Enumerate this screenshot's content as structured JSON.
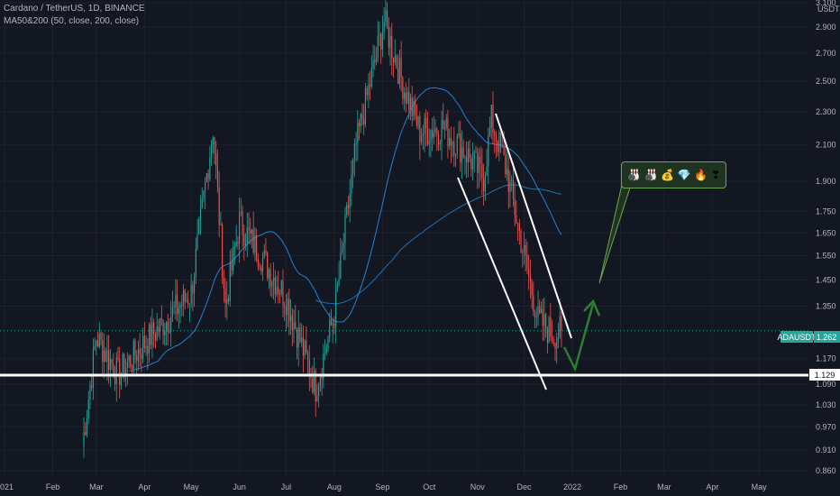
{
  "header": {
    "title": "Cardano / TetherUS, 1D, BINANCE",
    "indicator": "MA50&200 (50, close, 200, close)"
  },
  "emojis": [
    "🎳",
    "🎳",
    "💰",
    "💎",
    "🔥",
    "❣"
  ],
  "colors": {
    "background": "#131722",
    "up": "#26a69a",
    "down": "#ef5350",
    "ma50": "#2196f3",
    "ma200": "#2196f3",
    "support": "#ffffff",
    "arrow": "#2e7d32",
    "price_tag": "#26a69a"
  },
  "chart_data": {
    "type": "candlestick",
    "symbol": "ADAUSDT",
    "exchange": "BINANCE",
    "interval": "1D",
    "currency": "USDT",
    "y_scale": "log",
    "ylim": [
      0.835,
      3.16
    ],
    "y_ticks": [
      "3.100",
      "2.900",
      "2.700",
      "2.500",
      "2.300",
      "2.100",
      "1.900",
      "1.750",
      "1.650",
      "1.550",
      "1.450",
      "1.350",
      "1.170",
      "1.090",
      "1.030",
      "0.970",
      "0.910",
      "0.860"
    ],
    "x_ticks": [
      "2021",
      "Feb",
      "Mar",
      "Apr",
      "May",
      "Jun",
      "Jul",
      "Aug",
      "Sep",
      "Oct",
      "Nov",
      "Dec",
      "2022",
      "Feb",
      "Mar",
      "Apr",
      "May"
    ],
    "last_price": {
      "label": "ADAUSDT",
      "value": "1.262"
    },
    "support_level": {
      "value": "1.129"
    },
    "key_closes": [
      {
        "date": "2021-02-20",
        "close": 0.92
      },
      {
        "date": "2021-03-01",
        "close": 1.24
      },
      {
        "date": "2021-03-15",
        "close": 1.12
      },
      {
        "date": "2021-04-01",
        "close": 1.22
      },
      {
        "date": "2021-04-15",
        "close": 1.3
      },
      {
        "date": "2021-05-01",
        "close": 1.4
      },
      {
        "date": "2021-05-15",
        "close": 2.2
      },
      {
        "date": "2021-05-23",
        "close": 1.35
      },
      {
        "date": "2021-06-01",
        "close": 1.7
      },
      {
        "date": "2021-06-15",
        "close": 1.55
      },
      {
        "date": "2021-07-01",
        "close": 1.38
      },
      {
        "date": "2021-07-20",
        "close": 1.08
      },
      {
        "date": "2021-08-01",
        "close": 1.32
      },
      {
        "date": "2021-08-15",
        "close": 2.1
      },
      {
        "date": "2021-09-02",
        "close": 2.95
      },
      {
        "date": "2021-09-15",
        "close": 2.45
      },
      {
        "date": "2021-09-25",
        "close": 2.18
      },
      {
        "date": "2021-10-10",
        "close": 2.2
      },
      {
        "date": "2021-10-25",
        "close": 2.05
      },
      {
        "date": "2021-11-05",
        "close": 1.92
      },
      {
        "date": "2021-11-10",
        "close": 2.25
      },
      {
        "date": "2021-11-20",
        "close": 1.95
      },
      {
        "date": "2021-12-01",
        "close": 1.55
      },
      {
        "date": "2021-12-10",
        "close": 1.3
      },
      {
        "date": "2021-12-20",
        "close": 1.25
      },
      {
        "date": "2021-12-25",
        "close": 1.262
      }
    ]
  }
}
